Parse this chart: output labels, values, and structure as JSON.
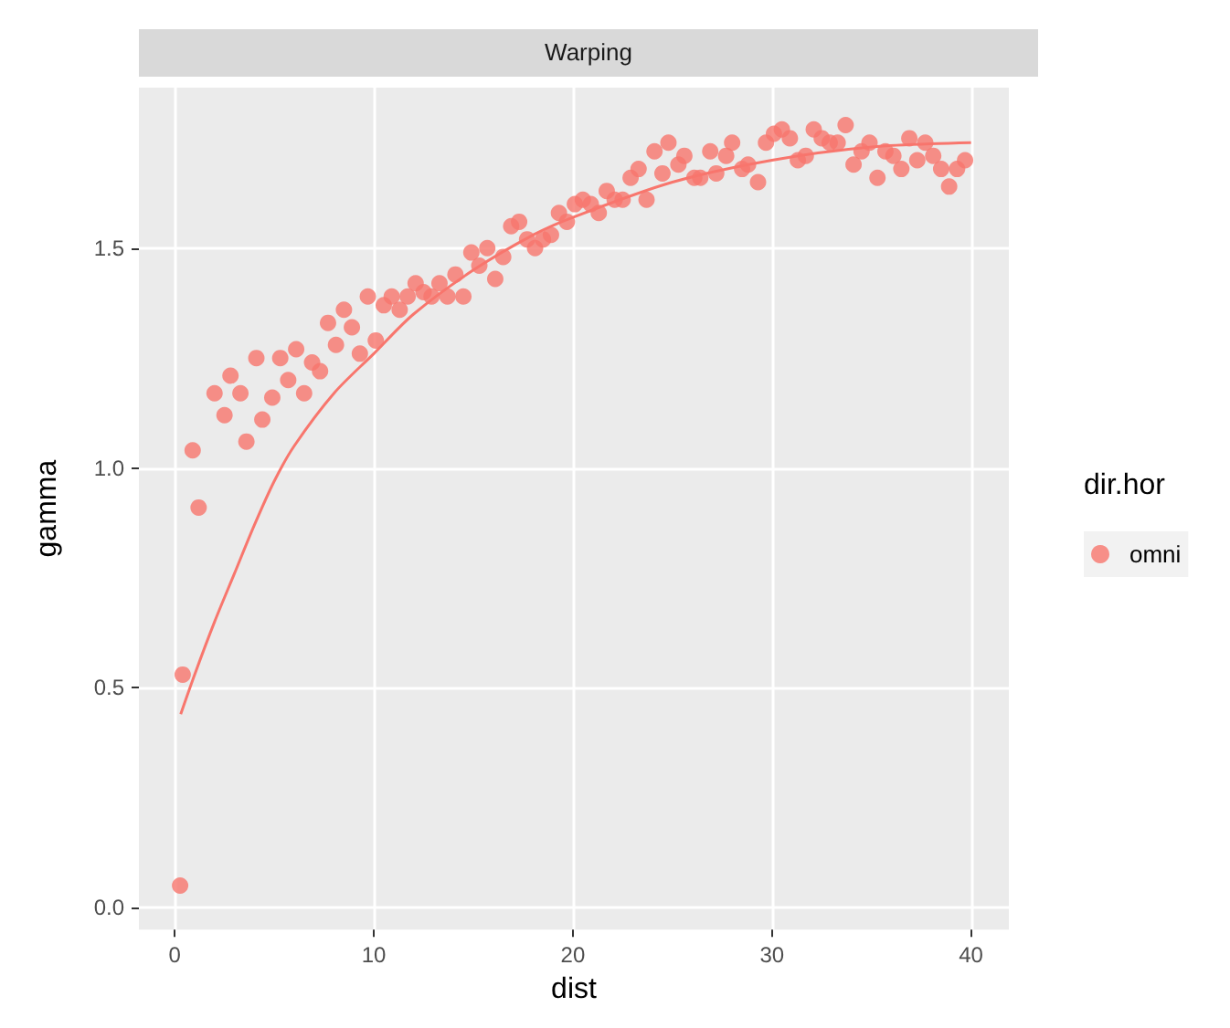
{
  "chart_data": {
    "type": "scatter",
    "title": "Warping",
    "xlabel": "dist",
    "ylabel": "gamma",
    "legend_title": "dir.hor",
    "xlim": [
      -1.8,
      41.9
    ],
    "ylim": [
      -0.05,
      1.865
    ],
    "xticks": [
      0,
      10,
      20,
      30,
      40
    ],
    "yticks": [
      {
        "value": 0,
        "label": "0.0"
      },
      0.5,
      {
        "value": 1,
        "label": "1.0"
      },
      1.5
    ],
    "grid": true,
    "legend": "right",
    "marker": "circle",
    "series": [
      {
        "name": "omni",
        "color": "#f8766d",
        "x": [
          0.27,
          0.4,
          0.9,
          1.2,
          2.0,
          2.5,
          2.8,
          3.3,
          3.6,
          4.1,
          4.4,
          4.9,
          5.3,
          5.7,
          6.1,
          6.5,
          6.9,
          7.3,
          7.7,
          8.1,
          8.5,
          8.9,
          9.3,
          9.7,
          10.1,
          10.5,
          10.9,
          11.3,
          11.7,
          12.1,
          12.5,
          12.9,
          13.3,
          13.7,
          14.1,
          14.5,
          14.9,
          15.3,
          15.7,
          16.1,
          16.5,
          16.9,
          17.3,
          17.7,
          18.1,
          18.5,
          18.9,
          19.3,
          19.7,
          20.1,
          20.5,
          20.9,
          21.3,
          21.7,
          22.1,
          22.5,
          22.9,
          23.3,
          23.7,
          24.1,
          24.5,
          24.8,
          25.3,
          25.6,
          26.1,
          26.4,
          26.9,
          27.2,
          27.7,
          28.0,
          28.5,
          28.8,
          29.3,
          29.7,
          30.1,
          30.5,
          30.9,
          31.3,
          31.7,
          32.1,
          32.5,
          32.9,
          33.3,
          33.7,
          34.1,
          34.5,
          34.9,
          35.3,
          35.7,
          36.1,
          36.5,
          36.9,
          37.3,
          37.7,
          38.1,
          38.5,
          38.9,
          39.3,
          39.7
        ],
        "values": [
          0.05,
          0.53,
          1.04,
          0.91,
          1.17,
          1.12,
          1.21,
          1.17,
          1.06,
          1.25,
          1.11,
          1.16,
          1.25,
          1.2,
          1.27,
          1.17,
          1.24,
          1.22,
          1.33,
          1.28,
          1.36,
          1.32,
          1.26,
          1.39,
          1.29,
          1.37,
          1.39,
          1.36,
          1.39,
          1.42,
          1.4,
          1.39,
          1.42,
          1.39,
          1.44,
          1.39,
          1.49,
          1.46,
          1.5,
          1.43,
          1.48,
          1.55,
          1.56,
          1.52,
          1.5,
          1.52,
          1.53,
          1.58,
          1.56,
          1.6,
          1.61,
          1.6,
          1.58,
          1.63,
          1.61,
          1.61,
          1.66,
          1.68,
          1.61,
          1.72,
          1.67,
          1.74,
          1.69,
          1.71,
          1.66,
          1.66,
          1.72,
          1.67,
          1.71,
          1.74,
          1.68,
          1.69,
          1.65,
          1.74,
          1.76,
          1.77,
          1.75,
          1.7,
          1.71,
          1.77,
          1.75,
          1.74,
          1.74,
          1.78,
          1.69,
          1.72,
          1.74,
          1.66,
          1.72,
          1.71,
          1.68,
          1.75,
          1.7,
          1.74,
          1.71,
          1.68,
          1.64,
          1.68,
          1.7
        ]
      },
      {
        "type": "line",
        "marker": "none",
        "color": "#f8766d",
        "x": [
          0.3,
          1,
          2,
          3,
          4,
          5,
          6,
          8,
          10,
          12,
          15,
          18,
          20,
          25,
          30,
          35,
          40
        ],
        "values": [
          0.44,
          0.53,
          0.65,
          0.76,
          0.87,
          0.97,
          1.05,
          1.17,
          1.26,
          1.35,
          1.45,
          1.53,
          1.57,
          1.65,
          1.7,
          1.73,
          1.74
        ]
      }
    ]
  }
}
